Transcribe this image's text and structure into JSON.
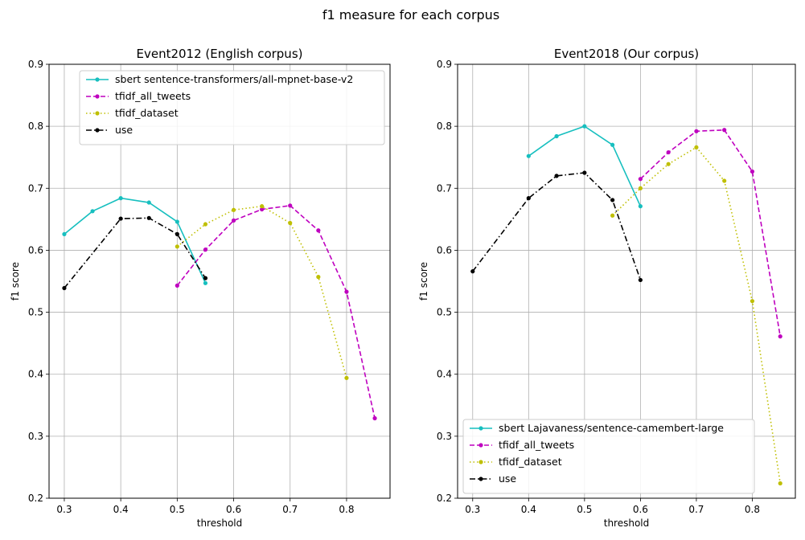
{
  "figure": {
    "suptitle": "f1 measure for each corpus"
  },
  "chart_data": [
    {
      "type": "line",
      "title": "Event2012 (English corpus)",
      "xlabel": "threshold",
      "ylabel": "f1 score",
      "xlim": [
        0.273,
        0.877
      ],
      "ylim": [
        0.2,
        0.9
      ],
      "xticks": [
        0.3,
        0.4,
        0.5,
        0.6,
        0.7,
        0.8
      ],
      "xtick_labels": [
        "0.3",
        "0.4",
        "0.5",
        "0.6",
        "0.7",
        "0.8"
      ],
      "yticks": [
        0.2,
        0.3,
        0.4,
        0.5,
        0.6,
        0.7,
        0.8,
        0.9
      ],
      "ytick_labels": [
        "0.2",
        "0.3",
        "0.4",
        "0.5",
        "0.6",
        "0.7",
        "0.8",
        "0.9"
      ],
      "grid": true,
      "legend_position": "upper-right",
      "series": [
        {
          "name": "sbert sentence-transformers/all-mpnet-base-v2",
          "color": "#17bfbf",
          "dash": "solid",
          "x": [
            0.3,
            0.35,
            0.4,
            0.45,
            0.5,
            0.55
          ],
          "y": [
            0.626,
            0.663,
            0.684,
            0.677,
            0.646,
            0.547
          ]
        },
        {
          "name": "tfidf_all_tweets",
          "color": "#bf00bf",
          "dash": "dashed",
          "x": [
            0.5,
            0.55,
            0.6,
            0.65,
            0.7,
            0.75,
            0.8,
            0.85
          ],
          "y": [
            0.543,
            0.601,
            0.648,
            0.666,
            0.672,
            0.632,
            0.533,
            0.329
          ]
        },
        {
          "name": "tfidf_dataset",
          "color": "#bfbf00",
          "dash": "dotted",
          "x": [
            0.5,
            0.55,
            0.6,
            0.65,
            0.7,
            0.75,
            0.8
          ],
          "y": [
            0.606,
            0.642,
            0.665,
            0.671,
            0.644,
            0.557,
            0.394
          ]
        },
        {
          "name": "use",
          "color": "#000000",
          "dash": "dashdot",
          "x": [
            0.3,
            0.4,
            0.45,
            0.5,
            0.55
          ],
          "y": [
            0.539,
            0.651,
            0.652,
            0.626,
            0.555
          ]
        }
      ]
    },
    {
      "type": "line",
      "title": "Event2018 (Our corpus)",
      "xlabel": "threshold",
      "ylabel": "f1 score",
      "xlim": [
        0.273,
        0.877
      ],
      "ylim": [
        0.2,
        0.9
      ],
      "xticks": [
        0.3,
        0.4,
        0.5,
        0.6,
        0.7,
        0.8
      ],
      "xtick_labels": [
        "0.3",
        "0.4",
        "0.5",
        "0.6",
        "0.7",
        "0.8"
      ],
      "yticks": [
        0.2,
        0.3,
        0.4,
        0.5,
        0.6,
        0.7,
        0.8,
        0.9
      ],
      "ytick_labels": [
        "0.2",
        "0.3",
        "0.4",
        "0.5",
        "0.6",
        "0.7",
        "0.8",
        "0.9"
      ],
      "grid": true,
      "legend_position": "lower-left",
      "series": [
        {
          "name": "sbert Lajavaness/sentence-camembert-large",
          "color": "#17bfbf",
          "dash": "solid",
          "x": [
            0.4,
            0.45,
            0.5,
            0.55,
            0.6
          ],
          "y": [
            0.752,
            0.784,
            0.8,
            0.77,
            0.671
          ]
        },
        {
          "name": "tfidf_all_tweets",
          "color": "#bf00bf",
          "dash": "dashed",
          "x": [
            0.6,
            0.65,
            0.7,
            0.75,
            0.8,
            0.85
          ],
          "y": [
            0.715,
            0.758,
            0.792,
            0.794,
            0.727,
            0.461
          ]
        },
        {
          "name": "tfidf_dataset",
          "color": "#bfbf00",
          "dash": "dotted",
          "x": [
            0.55,
            0.6,
            0.65,
            0.7,
            0.75,
            0.8,
            0.85
          ],
          "y": [
            0.656,
            0.7,
            0.739,
            0.766,
            0.712,
            0.518,
            0.224
          ]
        },
        {
          "name": "use",
          "color": "#000000",
          "dash": "dashdot",
          "x": [
            0.3,
            0.4,
            0.45,
            0.5,
            0.55,
            0.6
          ],
          "y": [
            0.566,
            0.684,
            0.72,
            0.725,
            0.681,
            0.552
          ]
        }
      ]
    }
  ]
}
